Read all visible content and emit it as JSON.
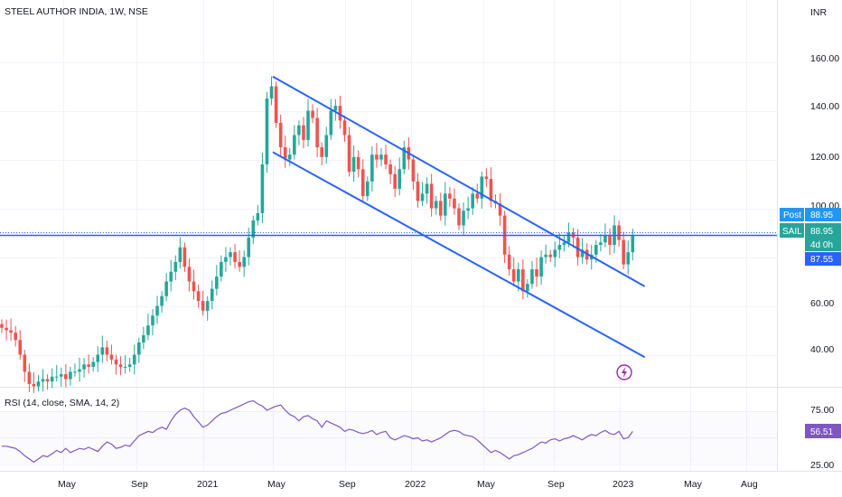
{
  "header": {
    "title": "STEEL AUTHOR INDIA, 1W, NSE"
  },
  "currency": "INR",
  "price_axis": {
    "ticks": [
      "160.00",
      "140.00",
      "120.00",
      "100.00",
      "60.00",
      "40.00"
    ]
  },
  "rsi_axis": {
    "ticks": [
      "75.00",
      "25.00"
    ]
  },
  "time_axis": {
    "ticks": [
      "May",
      "Sep",
      "2021",
      "May",
      "Sep",
      "2022",
      "May",
      "Sep",
      "2023",
      "May",
      "Aug"
    ]
  },
  "labels": {
    "post_tag": "Post",
    "post_value": "88.95",
    "symbol_tag": "SAIL",
    "symbol_value": "88.95",
    "countdown": "4d 0h",
    "channel_value": "87.55",
    "rsi_value": "56.51"
  },
  "rsi_indicator": {
    "title": "RSI (14, close, SMA, 14, 2)"
  },
  "colors": {
    "up": "#26a69a",
    "down": "#ef5350",
    "trend": "#2962ff",
    "rsi": "#7e57c2",
    "post": "#2196f3",
    "price_line": "#2962ff",
    "flash": "#9c27b0"
  },
  "chart_data": {
    "type": "candlestick",
    "title": "STEEL AUTHOR INDIA, 1W, NSE",
    "ylabel": "INR",
    "ylim": [
      27,
      170
    ],
    "last_close": 88.95,
    "series": [
      {
        "name": "price",
        "close": [
          51,
          50,
          49,
          46,
          40,
          33,
          28,
          27,
          29,
          30,
          29,
          31,
          31,
          32,
          30,
          33,
          33,
          34,
          36,
          35,
          37,
          40,
          43,
          40,
          38,
          36,
          35,
          35,
          36,
          40,
          45,
          48,
          52,
          56,
          60,
          64,
          70,
          74,
          78,
          84,
          76,
          70,
          66,
          62,
          58,
          62,
          67,
          72,
          78,
          80,
          82,
          78,
          76,
          80,
          88,
          95,
          98,
          118,
          145,
          150,
          135,
          125,
          120,
          122,
          130,
          134,
          128,
          140,
          137,
          125,
          121,
          130,
          140,
          142,
          136,
          130,
          115,
          121,
          116,
          105,
          111,
          122,
          120,
          122,
          118,
          114,
          108,
          116,
          125,
          120,
          111,
          103,
          106,
          110,
          100,
          103,
          97,
          106,
          104,
          100,
          93,
          99,
          100,
          106,
          104,
          113,
          112,
          103,
          102,
          97,
          81,
          75,
          70,
          75,
          66,
          69,
          75,
          72,
          80,
          81,
          80,
          83,
          85,
          86,
          90,
          88,
          80,
          83,
          79,
          81,
          85,
          86,
          89,
          85,
          93,
          87,
          77,
          82,
          89
        ]
      }
    ],
    "trendlines": [
      {
        "name": "upper",
        "points": [
          [
            "2021-05",
            154
          ],
          [
            "2023-02",
            68
          ]
        ]
      },
      {
        "name": "lower",
        "points": [
          [
            "2021-05",
            123
          ],
          [
            "2023-02",
            39
          ]
        ]
      }
    ],
    "rsi": {
      "title": "RSI (14, close, SMA, 14, 2)",
      "ylim": [
        18,
        92
      ],
      "last": 56.51,
      "values": [
        42,
        42,
        41,
        40,
        37,
        33,
        30,
        27,
        30,
        33,
        32,
        35,
        38,
        36,
        40,
        36,
        38,
        40,
        39,
        41,
        39,
        37,
        42,
        46,
        44,
        40,
        41,
        43,
        42,
        47,
        52,
        54,
        56,
        55,
        58,
        60,
        58,
        66,
        72,
        76,
        78,
        76,
        70,
        65,
        60,
        62,
        66,
        70,
        73,
        74,
        76,
        78,
        80,
        82,
        84,
        85,
        82,
        80,
        76,
        78,
        80,
        81,
        76,
        72,
        70,
        66,
        70,
        71,
        68,
        66,
        60,
        66,
        64,
        62,
        60,
        56,
        58,
        57,
        55,
        54,
        55,
        57,
        53,
        55,
        56,
        50,
        48,
        50,
        52,
        51,
        49,
        50,
        47,
        48,
        46,
        48,
        50,
        53,
        56,
        57,
        56,
        53,
        52,
        51,
        48,
        44,
        40,
        36,
        38,
        36,
        33,
        30,
        33,
        34,
        36,
        38,
        40,
        43,
        46,
        45,
        48,
        49,
        47,
        49,
        50,
        52,
        50,
        48,
        51,
        53,
        52,
        55,
        57,
        54,
        53,
        56,
        49,
        50,
        56
      ]
    }
  }
}
